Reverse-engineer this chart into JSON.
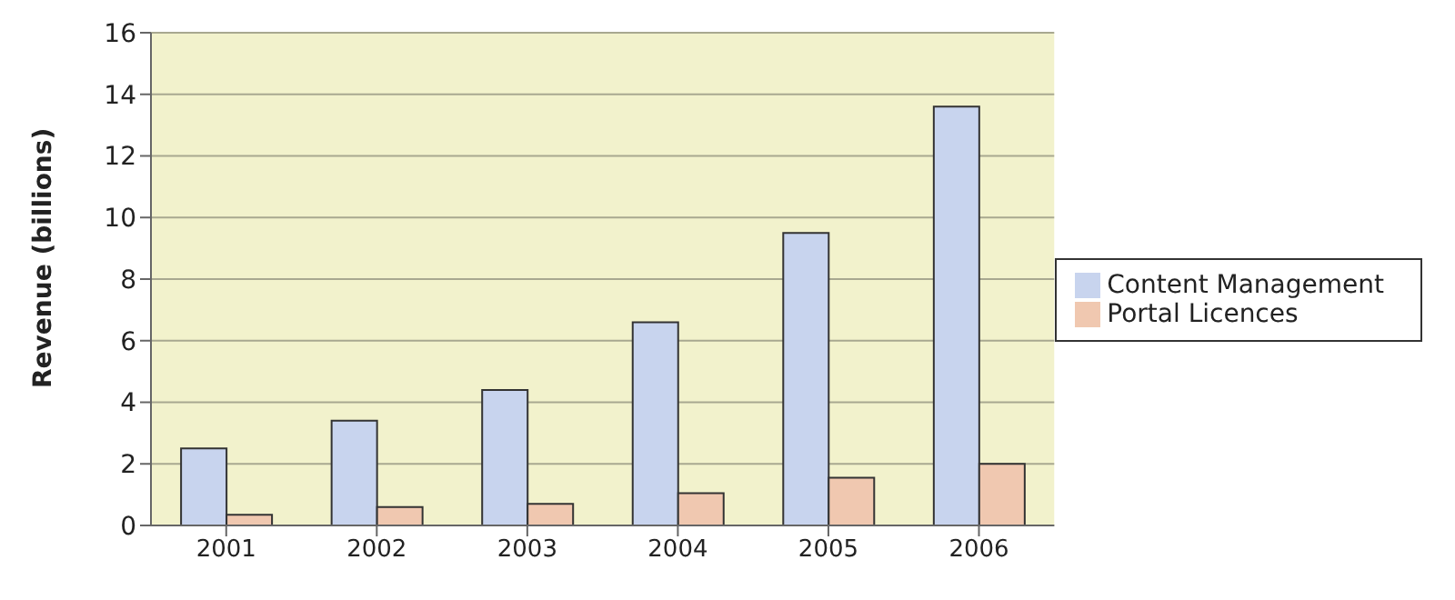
{
  "chart_data": {
    "type": "bar",
    "ylabel": "Revenue (billions)",
    "categories": [
      "2001",
      "2002",
      "2003",
      "2004",
      "2005",
      "2006"
    ],
    "series": [
      {
        "name": "Content Management",
        "color": "#c8d4ee",
        "values": [
          2.5,
          3.4,
          4.4,
          6.6,
          9.5,
          13.6
        ]
      },
      {
        "name": "Portal Licences",
        "color": "#f0c8b0",
        "values": [
          0.35,
          0.6,
          0.7,
          1.05,
          1.55,
          2.0
        ]
      }
    ],
    "ylim": [
      0,
      16
    ],
    "yticks": [
      0,
      2,
      4,
      6,
      8,
      10,
      12,
      14,
      16
    ],
    "grid": "y",
    "legend": "right"
  }
}
